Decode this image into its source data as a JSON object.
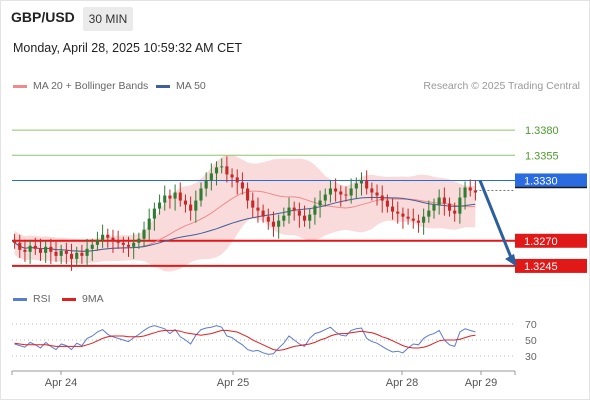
{
  "header": {
    "symbol": "GBP/USD",
    "timeframe": "30 MIN",
    "datetime": "Monday, April 28, 2025 10:59:32 AM CET"
  },
  "legend": {
    "ma20_label": "MA 20 + Bollinger Bands",
    "ma50_label": "MA 50",
    "credit": "Research © 2025 Trading Central"
  },
  "rsi_legend": {
    "rsi_label": "RSI",
    "ma_label": "9MA"
  },
  "colors": {
    "candle_up": "#2e7d32",
    "candle_down": "#c62828",
    "bollinger_fill": "#f8c8c8",
    "ma20": "#f08a8a",
    "ma50": "#3f5e9a",
    "resistance_green": "#8ec56a",
    "pivot_blue": "#2a6be0",
    "support_red": "#e01818",
    "arrow": "#2c5f9e",
    "rsi": "#5a7bd0",
    "rsi_ma": "#e02020"
  },
  "chart_data": {
    "type": "candlestick",
    "symbol": "GBP/USD",
    "interval": "30 MIN",
    "x_labels": [
      "Apr 24",
      "Apr 25",
      "Apr 28",
      "Apr 29"
    ],
    "price_range": [
      1.323,
      1.341
    ],
    "levels": [
      {
        "price": 1.338,
        "label": "1.3380",
        "kind": "resistance",
        "color": "#8ec56a"
      },
      {
        "price": 1.3355,
        "label": "1.3355",
        "kind": "resistance",
        "color": "#8ec56a"
      },
      {
        "price": 1.333,
        "label": "1.3330",
        "kind": "pivot",
        "color": "#2a6be0"
      },
      {
        "price": 1.327,
        "label": "1.3270",
        "kind": "support",
        "color": "#e01818"
      },
      {
        "price": 1.3245,
        "label": "1.3245",
        "kind": "support",
        "color": "#e01818"
      }
    ],
    "forecast_arrow": {
      "from_price": 1.333,
      "to_price": 1.3245,
      "direction": "down"
    },
    "closes": [
      1.3268,
      1.3261,
      1.3259,
      1.3265,
      1.3262,
      1.3258,
      1.3264,
      1.3259,
      1.3255,
      1.326,
      1.3257,
      1.3252,
      1.3258,
      1.3255,
      1.3262,
      1.3266,
      1.3271,
      1.3276,
      1.3273,
      1.327,
      1.3268,
      1.3266,
      1.3264,
      1.3268,
      1.3272,
      1.3281,
      1.3292,
      1.3302,
      1.3308,
      1.3315,
      1.3312,
      1.3318,
      1.331,
      1.3306,
      1.33,
      1.331,
      1.3322,
      1.333,
      1.3337,
      1.3343,
      1.3344,
      1.3336,
      1.3333,
      1.3328,
      1.3322,
      1.331,
      1.3303,
      1.33,
      1.3294,
      1.3289,
      1.3284,
      1.329,
      1.3295,
      1.3303,
      1.33,
      1.3295,
      1.329,
      1.3296,
      1.3305,
      1.331,
      1.3316,
      1.3322,
      1.3319,
      1.3316,
      1.3315,
      1.3322,
      1.3327,
      1.333,
      1.3322,
      1.3318,
      1.3315,
      1.331,
      1.3304,
      1.3299,
      1.3297,
      1.3294,
      1.3292,
      1.329,
      1.3288,
      1.3294,
      1.33,
      1.3306,
      1.3313,
      1.3307,
      1.33,
      1.3297,
      1.3313,
      1.3323,
      1.332,
      1.3318
    ],
    "rsi": {
      "levels": [
        70,
        50,
        30
      ],
      "range": [
        20,
        80
      ],
      "rsi_values": [
        45,
        43,
        41,
        47,
        44,
        40,
        47,
        42,
        38,
        45,
        43,
        38,
        46,
        43,
        52,
        55,
        60,
        63,
        57,
        54,
        52,
        50,
        48,
        53,
        57,
        62,
        66,
        68,
        66,
        64,
        58,
        63,
        54,
        50,
        45,
        56,
        63,
        65,
        66,
        68,
        66,
        55,
        53,
        48,
        44,
        38,
        36,
        37,
        34,
        32,
        33,
        40,
        46,
        55,
        50,
        45,
        42,
        52,
        58,
        60,
        63,
        66,
        60,
        56,
        55,
        62,
        64,
        65,
        52,
        48,
        46,
        42,
        38,
        35,
        36,
        34,
        40,
        45,
        44,
        52,
        56,
        58,
        62,
        50,
        44,
        42,
        60,
        64,
        62,
        60
      ],
      "ma_values": [
        46,
        45,
        44,
        44,
        44,
        44,
        44,
        43,
        42,
        42,
        42,
        42,
        42,
        42,
        44,
        46,
        49,
        52,
        54,
        55,
        55,
        55,
        54,
        54,
        54,
        55,
        57,
        59,
        61,
        62,
        62,
        62,
        61,
        59,
        58,
        57,
        56,
        57,
        58,
        60,
        62,
        62,
        61,
        60,
        57,
        54,
        50,
        47,
        44,
        41,
        38,
        37,
        38,
        40,
        42,
        43,
        44,
        45,
        47,
        50,
        52,
        55,
        57,
        58,
        58,
        59,
        60,
        61,
        60,
        59,
        57,
        54,
        52,
        49,
        46,
        43,
        41,
        40,
        40,
        41,
        43,
        46,
        49,
        50,
        50,
        50,
        51,
        53,
        55,
        56
      ]
    }
  }
}
